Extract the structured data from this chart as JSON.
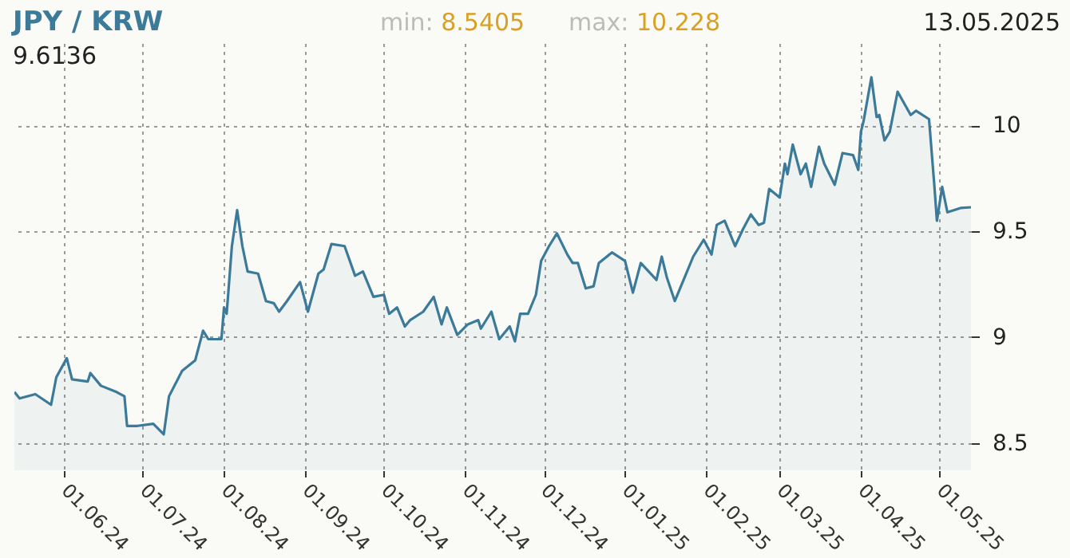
{
  "chart_data": {
    "type": "area",
    "title": "JPY / KRW",
    "annotations": [
      "min: 8.5405",
      "max: 10.228",
      "13.05.2025",
      "9.6136"
    ],
    "x": [
      "2024-05-13",
      "2024-05-15",
      "2024-05-21",
      "2024-05-27",
      "2024-05-29",
      "2024-06-02",
      "2024-06-04",
      "2024-06-10",
      "2024-06-11",
      "2024-06-15",
      "2024-06-21",
      "2024-06-24",
      "2024-06-25",
      "2024-06-29",
      "2024-07-05",
      "2024-07-09",
      "2024-07-11",
      "2024-07-16",
      "2024-07-21",
      "2024-07-24",
      "2024-07-26",
      "2024-07-31",
      "2024-08-01",
      "2024-08-02",
      "2024-08-04",
      "2024-08-06",
      "2024-08-08",
      "2024-08-10",
      "2024-08-14",
      "2024-08-17",
      "2024-08-20",
      "2024-08-22",
      "2024-08-25",
      "2024-08-30",
      "2024-09-02",
      "2024-09-06",
      "2024-09-08",
      "2024-09-11",
      "2024-09-16",
      "2024-09-20",
      "2024-09-23",
      "2024-09-27",
      "2024-10-01",
      "2024-10-03",
      "2024-10-06",
      "2024-10-09",
      "2024-10-11",
      "2024-10-16",
      "2024-10-20",
      "2024-10-23",
      "2024-10-25",
      "2024-10-29",
      "2024-11-02",
      "2024-11-06",
      "2024-11-07",
      "2024-11-11",
      "2024-11-14",
      "2024-11-18",
      "2024-11-20",
      "2024-11-22",
      "2024-11-25",
      "2024-11-28",
      "2024-11-30",
      "2024-12-03",
      "2024-12-06",
      "2024-12-10",
      "2024-12-12",
      "2024-12-14",
      "2024-12-17",
      "2024-12-20",
      "2024-12-22",
      "2024-12-27",
      "2025-01-01",
      "2025-01-04",
      "2025-01-07",
      "2025-01-13",
      "2025-01-15",
      "2025-01-17",
      "2025-01-20",
      "2025-01-24",
      "2025-01-27",
      "2025-01-31",
      "2025-02-03",
      "2025-02-05",
      "2025-02-08",
      "2025-02-12",
      "2025-02-15",
      "2025-02-18",
      "2025-02-21",
      "2025-02-23",
      "2025-02-25",
      "2025-03-01",
      "2025-03-03",
      "2025-03-04",
      "2025-03-06",
      "2025-03-09",
      "2025-03-11",
      "2025-03-13",
      "2025-03-16",
      "2025-03-18",
      "2025-03-22",
      "2025-03-25",
      "2025-03-29",
      "2025-03-31",
      "2025-04-01",
      "2025-04-02",
      "2025-04-05",
      "2025-04-07",
      "2025-04-08",
      "2025-04-10",
      "2025-04-12",
      "2025-04-15",
      "2025-04-20",
      "2025-04-22",
      "2025-04-27",
      "2025-04-29",
      "2025-04-30",
      "2025-05-02",
      "2025-05-04",
      "2025-05-09",
      "2025-05-13"
    ],
    "series": [
      {
        "color": "#3b7a99",
        "values": [
          8.74,
          8.71,
          8.73,
          8.68,
          8.81,
          8.9,
          8.8,
          8.79,
          8.83,
          8.77,
          8.74,
          8.72,
          8.58,
          8.58,
          8.59,
          8.54,
          8.72,
          8.84,
          8.89,
          9.03,
          8.99,
          8.99,
          9.14,
          9.11,
          9.43,
          9.6,
          9.43,
          9.31,
          9.3,
          9.17,
          9.16,
          9.12,
          9.17,
          9.26,
          9.12,
          9.3,
          9.32,
          9.44,
          9.43,
          9.29,
          9.31,
          9.19,
          9.2,
          9.11,
          9.14,
          9.05,
          9.08,
          9.12,
          9.19,
          9.06,
          9.14,
          9.01,
          9.06,
          9.08,
          9.04,
          9.12,
          8.99,
          9.05,
          8.98,
          9.11,
          9.11,
          9.2,
          9.36,
          9.43,
          9.49,
          9.39,
          9.35,
          9.35,
          9.23,
          9.24,
          9.35,
          9.4,
          9.36,
          9.21,
          9.35,
          9.27,
          9.38,
          9.28,
          9.17,
          9.29,
          9.38,
          9.46,
          9.39,
          9.53,
          9.55,
          9.43,
          9.51,
          9.58,
          9.53,
          9.54,
          9.7,
          9.66,
          9.82,
          9.77,
          9.91,
          9.77,
          9.82,
          9.71,
          9.9,
          9.82,
          9.72,
          9.87,
          9.86,
          9.79,
          9.97,
          10.02,
          10.228,
          10.04,
          10.05,
          9.93,
          9.97,
          10.16,
          10.05,
          10.07,
          10.03,
          9.72,
          9.55,
          9.71,
          9.59,
          9.61,
          9.6136
        ]
      }
    ],
    "xlim": [
      "2024-05-13",
      "2025-05-13"
    ],
    "xticks": [
      {
        "value": "2024-06-01",
        "label": "01.06.24"
      },
      {
        "value": "2024-07-01",
        "label": "01.07.24"
      },
      {
        "value": "2024-08-01",
        "label": "01.08.24"
      },
      {
        "value": "2024-09-01",
        "label": "01.09.24"
      },
      {
        "value": "2024-10-01",
        "label": "01.10.24"
      },
      {
        "value": "2024-11-01",
        "label": "01.11.24"
      },
      {
        "value": "2024-12-01",
        "label": "01.12.24"
      },
      {
        "value": "2025-01-01",
        "label": "01.01.25"
      },
      {
        "value": "2025-02-01",
        "label": "01.02.25"
      },
      {
        "value": "2025-03-01",
        "label": "01.03.25"
      },
      {
        "value": "2025-04-01",
        "label": "01.04.25"
      },
      {
        "value": "2025-05-01",
        "label": "01.05.25"
      }
    ],
    "ylim": [
      8.37,
      10.39
    ],
    "yticks": [
      8.5,
      9,
      9.5,
      10
    ],
    "grid": true
  }
}
